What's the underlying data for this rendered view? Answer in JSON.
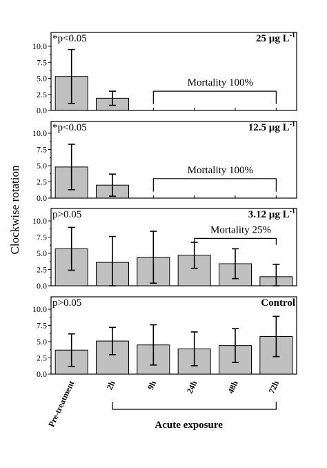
{
  "chart_data": {
    "type": "bar",
    "ylabel": "Clockwise rotation",
    "categories": [
      "Pre-treatment",
      "2h",
      "9h",
      "24h",
      "48h",
      "72h"
    ],
    "xgroup": {
      "label": "Acute exposure",
      "from": 1,
      "to": 5
    },
    "ylim": [
      0,
      10
    ],
    "yticks": [
      "0.0",
      "2.5",
      "5.0",
      "7.5",
      "10.0"
    ],
    "bar_color": "#c0c0c0",
    "panels": [
      {
        "concentration": "25 µg L",
        "exponent": "-1",
        "significance": "*p<0.05",
        "values": [
          5.3,
          1.9,
          null,
          null,
          null,
          null
        ],
        "errors": [
          4.2,
          1.1,
          null,
          null,
          null,
          null
        ],
        "mortality": {
          "label": "Mortality 100%",
          "from": 2,
          "to": 5
        }
      },
      {
        "concentration": "12.5 µg L",
        "exponent": "-1",
        "significance": "*p<0.05",
        "values": [
          4.8,
          2.0,
          null,
          null,
          null,
          null
        ],
        "errors": [
          3.5,
          1.7,
          null,
          null,
          null,
          null
        ],
        "mortality": {
          "label": "Mortality 100%",
          "from": 2,
          "to": 5
        }
      },
      {
        "concentration": "3.12 µg L",
        "exponent": "-1",
        "significance": "p>0.05",
        "values": [
          5.7,
          3.6,
          4.4,
          4.7,
          3.4,
          1.4
        ],
        "errors": [
          3.3,
          4.0,
          4.0,
          2.0,
          2.3,
          1.9
        ],
        "mortality": {
          "label": "Mortality 25%",
          "from": 3,
          "to": 5
        }
      },
      {
        "concentration": "Control",
        "exponent": "",
        "significance": "p>0.05",
        "values": [
          3.7,
          5.1,
          4.5,
          3.9,
          4.4,
          5.8
        ],
        "errors": [
          2.5,
          2.1,
          3.1,
          2.6,
          2.6,
          3.1
        ],
        "mortality": null
      }
    ]
  }
}
